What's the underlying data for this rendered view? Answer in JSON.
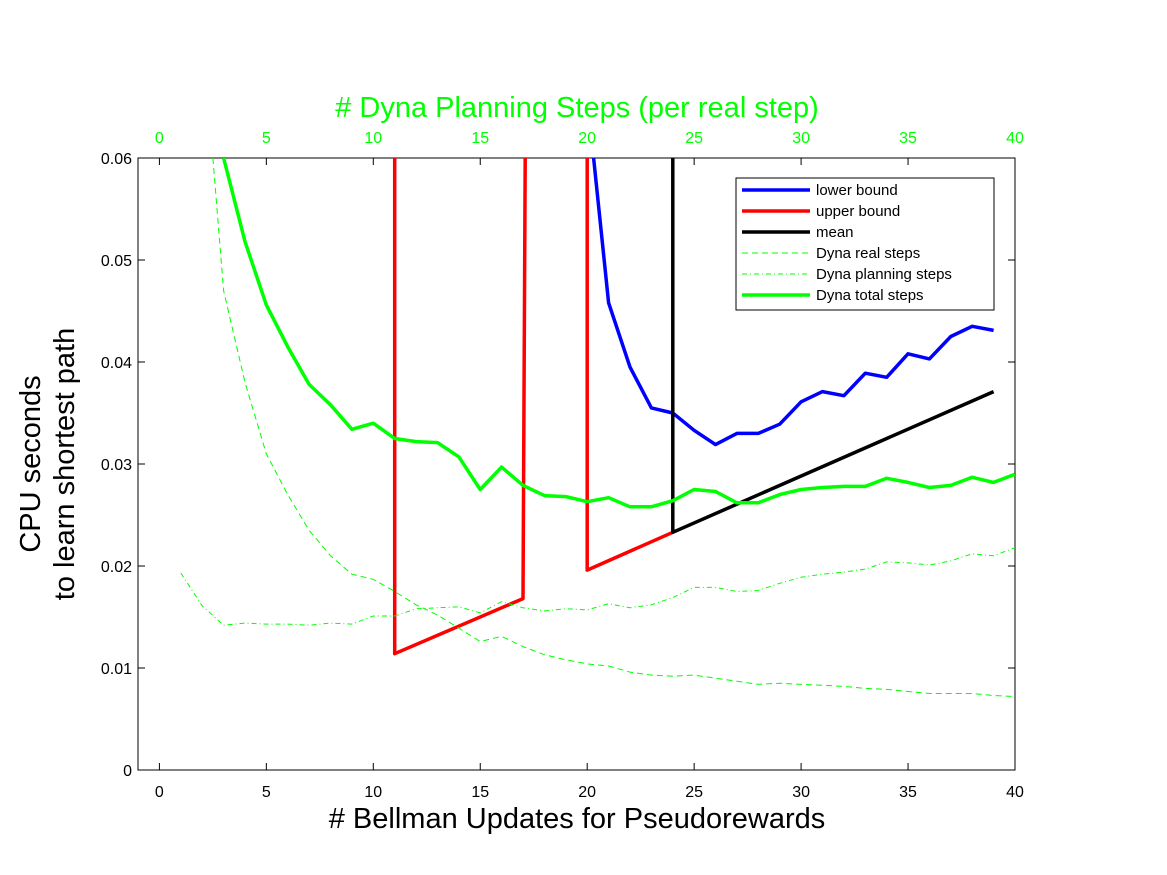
{
  "chart_data": {
    "type": "line",
    "title": "",
    "xlabel": "# Bellman Updates for Pseudorewards",
    "ylabel": "CPU seconds\nto learn shortest path",
    "ylabel_line1": "CPU seconds",
    "ylabel_line2": "to learn shortest path",
    "xlim": [
      -1,
      40
    ],
    "ylim": [
      0,
      0.06
    ],
    "x_ticks": [
      "0",
      "5",
      "10",
      "15",
      "20",
      "25",
      "30",
      "35",
      "40"
    ],
    "y_ticks": [
      "0",
      "0.01",
      "0.02",
      "0.03",
      "0.04",
      "0.05",
      "0.06"
    ],
    "top_axis": {
      "label": "# Dyna Planning Steps (per real step)",
      "ticks": [
        "0",
        "5",
        "10",
        "15",
        "20",
        "25",
        "30",
        "35",
        "40"
      ],
      "color": "#00ff00"
    },
    "grid": false,
    "legend_position": "top-right",
    "series": [
      {
        "name": "lower bound",
        "color": "#0000ff",
        "style": "solid",
        "width": 3.5,
        "points": [
          [
            20.3,
            0.06
          ],
          [
            21,
            0.0458
          ],
          [
            22,
            0.0395
          ],
          [
            23,
            0.0355
          ],
          [
            24,
            0.035
          ],
          [
            25,
            0.0333
          ],
          [
            26,
            0.0319
          ],
          [
            27,
            0.033
          ],
          [
            28,
            0.033
          ],
          [
            29,
            0.0339
          ],
          [
            30,
            0.0361
          ],
          [
            31,
            0.0371
          ],
          [
            32,
            0.0367
          ],
          [
            33,
            0.0389
          ],
          [
            34,
            0.0385
          ],
          [
            35,
            0.0408
          ],
          [
            36,
            0.0403
          ],
          [
            37,
            0.0425
          ],
          [
            38,
            0.0435
          ],
          [
            39,
            0.0431
          ]
        ]
      },
      {
        "name": "upper bound",
        "color": "#ff0000",
        "style": "solid",
        "width": 3.5,
        "points": [
          [
            11,
            0.06
          ],
          [
            11,
            0.0114
          ],
          [
            17,
            0.0168
          ],
          [
            17.1,
            0.06
          ],
          null,
          [
            20,
            0.06
          ],
          [
            20,
            0.0196
          ],
          [
            24,
            0.0233
          ]
        ]
      },
      {
        "name": "mean",
        "color": "#000000",
        "style": "solid",
        "width": 3.5,
        "points": [
          [
            24,
            0.06
          ],
          [
            24,
            0.0233
          ],
          [
            39,
            0.0371
          ]
        ]
      },
      {
        "name": "Dyna real steps",
        "color": "#00ff00",
        "style": "dashed",
        "width": 1,
        "points": [
          [
            2.5,
            0.06
          ],
          [
            3,
            0.047
          ],
          [
            4,
            0.038
          ],
          [
            5,
            0.031
          ],
          [
            6,
            0.027
          ],
          [
            7,
            0.0235
          ],
          [
            8,
            0.021
          ],
          [
            9,
            0.0192
          ],
          [
            10,
            0.0187
          ],
          [
            11,
            0.0175
          ],
          [
            12,
            0.0162
          ],
          [
            13,
            0.0152
          ],
          [
            14,
            0.0139
          ],
          [
            15,
            0.0126
          ],
          [
            16,
            0.0131
          ],
          [
            17,
            0.0121
          ],
          [
            18,
            0.0113
          ],
          [
            19,
            0.0108
          ],
          [
            20,
            0.0104
          ],
          [
            21,
            0.0102
          ],
          [
            22,
            0.0096
          ],
          [
            23,
            0.0093
          ],
          [
            24,
            0.0092
          ],
          [
            25,
            0.0093
          ],
          [
            26,
            0.009
          ],
          [
            27,
            0.0087
          ],
          [
            28,
            0.0084
          ],
          [
            29,
            0.0085
          ],
          [
            30,
            0.0084
          ],
          [
            31,
            0.0083
          ],
          [
            32,
            0.0082
          ],
          [
            33,
            0.008
          ],
          [
            34,
            0.0079
          ],
          [
            35,
            0.0077
          ],
          [
            36,
            0.0075
          ],
          [
            37,
            0.0075
          ],
          [
            38,
            0.0075
          ],
          [
            39,
            0.0073
          ],
          [
            40,
            0.0072
          ]
        ]
      },
      {
        "name": "Dyna planning steps",
        "color": "#00ff00",
        "style": "dashdot",
        "width": 1,
        "points": [
          [
            1,
            0.0193
          ],
          [
            2,
            0.0161
          ],
          [
            3,
            0.0142
          ],
          [
            4,
            0.0144
          ],
          [
            5,
            0.0143
          ],
          [
            6,
            0.0143
          ],
          [
            7,
            0.0142
          ],
          [
            8,
            0.0144
          ],
          [
            9,
            0.0143
          ],
          [
            10,
            0.0151
          ],
          [
            11,
            0.0151
          ],
          [
            12,
            0.0158
          ],
          [
            13,
            0.0159
          ],
          [
            14,
            0.016
          ],
          [
            15,
            0.0154
          ],
          [
            16,
            0.0165
          ],
          [
            17,
            0.0159
          ],
          [
            18,
            0.0156
          ],
          [
            19,
            0.0158
          ],
          [
            20,
            0.0157
          ],
          [
            21,
            0.0163
          ],
          [
            22,
            0.0159
          ],
          [
            23,
            0.0162
          ],
          [
            24,
            0.0169
          ],
          [
            25,
            0.0179
          ],
          [
            26,
            0.0179
          ],
          [
            27,
            0.0175
          ],
          [
            28,
            0.0176
          ],
          [
            29,
            0.0183
          ],
          [
            30,
            0.0189
          ],
          [
            31,
            0.0192
          ],
          [
            32,
            0.0194
          ],
          [
            33,
            0.0197
          ],
          [
            34,
            0.0204
          ],
          [
            35,
            0.0203
          ],
          [
            36,
            0.0201
          ],
          [
            37,
            0.0205
          ],
          [
            38,
            0.0212
          ],
          [
            39,
            0.021
          ],
          [
            40,
            0.0218
          ]
        ]
      },
      {
        "name": "Dyna total steps",
        "color": "#00ff00",
        "style": "solid",
        "width": 3.5,
        "points": [
          [
            3,
            0.06
          ],
          [
            4,
            0.0518
          ],
          [
            5,
            0.0456
          ],
          [
            6,
            0.0415
          ],
          [
            7,
            0.0378
          ],
          [
            8,
            0.0358
          ],
          [
            9,
            0.0334
          ],
          [
            10,
            0.034
          ],
          [
            11,
            0.0325
          ],
          [
            12,
            0.0322
          ],
          [
            13,
            0.0321
          ],
          [
            14,
            0.0307
          ],
          [
            15,
            0.0275
          ],
          [
            16,
            0.0297
          ],
          [
            17,
            0.0279
          ],
          [
            18,
            0.0269
          ],
          [
            19,
            0.0268
          ],
          [
            20,
            0.0263
          ],
          [
            21,
            0.0267
          ],
          [
            22,
            0.0258
          ],
          [
            23,
            0.0258
          ],
          [
            24,
            0.0264
          ],
          [
            25,
            0.0275
          ],
          [
            26,
            0.0273
          ],
          [
            27,
            0.0262
          ],
          [
            28,
            0.0262
          ],
          [
            29,
            0.027
          ],
          [
            30,
            0.0275
          ],
          [
            31,
            0.0277
          ],
          [
            32,
            0.0278
          ],
          [
            33,
            0.0278
          ],
          [
            34,
            0.0286
          ],
          [
            35,
            0.0282
          ],
          [
            36,
            0.0277
          ],
          [
            37,
            0.0279
          ],
          [
            38,
            0.0287
          ],
          [
            39,
            0.0282
          ],
          [
            40,
            0.029
          ]
        ]
      }
    ]
  }
}
